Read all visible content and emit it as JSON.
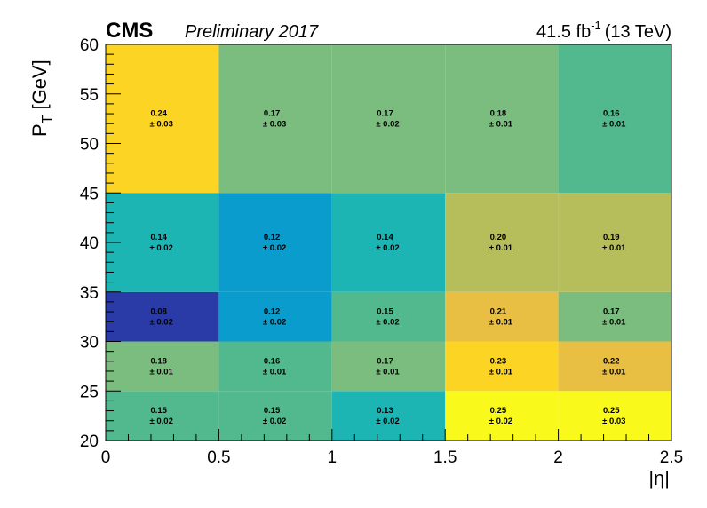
{
  "header": {
    "experiment": "CMS",
    "status": "Preliminary 2017",
    "lumi_value": "41.5 fb",
    "lumi_exp": "-1",
    "energy": "(13 TeV)"
  },
  "chart_data": {
    "type": "heatmap",
    "title": "",
    "xlabel": "|η|",
    "ylabel_main": "P",
    "ylabel_sub": "T",
    "ylabel_unit": "[GeV]",
    "x_edges": [
      0,
      0.5,
      1,
      1.5,
      2,
      2.5
    ],
    "y_edges": [
      20,
      25,
      30,
      35,
      45,
      60
    ],
    "xlim": [
      0,
      2.5
    ],
    "ylim": [
      20,
      60
    ],
    "x_ticks": [
      "0",
      "0.5",
      "1",
      "1.5",
      "2",
      "2.5"
    ],
    "y_ticks": [
      "20",
      "25",
      "30",
      "35",
      "40",
      "45",
      "50",
      "55",
      "60"
    ],
    "colormap": [
      "#2a3aa6",
      "#1a7fd6",
      "#0a9ccc",
      "#1db4b4",
      "#52b98e",
      "#7bbd7e",
      "#b6be5c",
      "#e8bf43",
      "#fcd424",
      "#f9f91c"
    ],
    "cells": [
      [
        {
          "value": 0.15,
          "label": "0.15",
          "error": "± 0.02"
        },
        {
          "value": 0.15,
          "label": "0.15",
          "error": "± 0.02"
        },
        {
          "value": 0.13,
          "label": "0.13",
          "error": "± 0.02"
        },
        {
          "value": 0.25,
          "label": "0.25",
          "error": "± 0.02"
        },
        {
          "value": 0.25,
          "label": "0.25",
          "error": "± 0.03"
        }
      ],
      [
        {
          "value": 0.18,
          "label": "0.18",
          "error": "± 0.01"
        },
        {
          "value": 0.16,
          "label": "0.16",
          "error": "± 0.01"
        },
        {
          "value": 0.17,
          "label": "0.17",
          "error": "± 0.01"
        },
        {
          "value": 0.23,
          "label": "0.23",
          "error": "± 0.01"
        },
        {
          "value": 0.22,
          "label": "0.22",
          "error": "± 0.01"
        }
      ],
      [
        {
          "value": 0.08,
          "label": "0.08",
          "error": "± 0.02"
        },
        {
          "value": 0.12,
          "label": "0.12",
          "error": "± 0.02"
        },
        {
          "value": 0.15,
          "label": "0.15",
          "error": "± 0.02"
        },
        {
          "value": 0.21,
          "label": "0.21",
          "error": "± 0.01"
        },
        {
          "value": 0.17,
          "label": "0.17",
          "error": "± 0.01"
        }
      ],
      [
        {
          "value": 0.14,
          "label": "0.14",
          "error": "± 0.02"
        },
        {
          "value": 0.12,
          "label": "0.12",
          "error": "± 0.02"
        },
        {
          "value": 0.14,
          "label": "0.14",
          "error": "± 0.02"
        },
        {
          "value": 0.2,
          "label": "0.20",
          "error": "± 0.01"
        },
        {
          "value": 0.19,
          "label": "0.19",
          "error": "± 0.01"
        }
      ],
      [
        {
          "value": 0.24,
          "label": "0.24",
          "error": "± 0.03"
        },
        {
          "value": 0.17,
          "label": "0.17",
          "error": "± 0.03"
        },
        {
          "value": 0.17,
          "label": "0.17",
          "error": "± 0.02"
        },
        {
          "value": 0.18,
          "label": "0.18",
          "error": "± 0.01"
        },
        {
          "value": 0.16,
          "label": "0.16",
          "error": "± 0.01"
        }
      ]
    ]
  }
}
